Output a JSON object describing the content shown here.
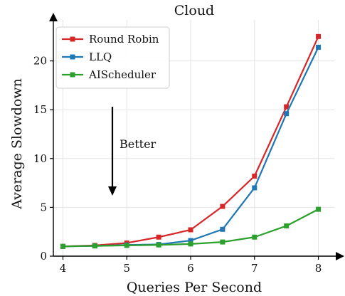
{
  "chart_data": {
    "type": "line",
    "title": "Cloud",
    "xlabel": "Queries Per Second",
    "ylabel": "Average Slowdown",
    "x": [
      4,
      4.5,
      5,
      5.5,
      6,
      6.5,
      7,
      7.5,
      8
    ],
    "xlim": [
      3.85,
      8.25
    ],
    "ylim": [
      0,
      24.2
    ],
    "xticks": [
      4,
      5,
      6,
      7,
      8
    ],
    "yticks": [
      0,
      5,
      10,
      15,
      20
    ],
    "grid": true,
    "legend_position": "top-left",
    "series": [
      {
        "name": "Round Robin",
        "color": "#d62728",
        "values": [
          1.0,
          1.1,
          1.35,
          1.95,
          2.7,
          5.1,
          8.2,
          15.3,
          22.5
        ]
      },
      {
        "name": "LLQ",
        "color": "#1f77b4",
        "values": [
          1.0,
          1.05,
          1.15,
          1.2,
          1.6,
          2.75,
          7.0,
          14.6,
          21.4
        ]
      },
      {
        "name": "AIScheduler",
        "color": "#2ca02c",
        "values": [
          1.0,
          1.05,
          1.1,
          1.15,
          1.25,
          1.45,
          1.95,
          3.1,
          4.8
        ]
      }
    ],
    "annotation": {
      "text": "Better",
      "arrow": "down"
    }
  }
}
